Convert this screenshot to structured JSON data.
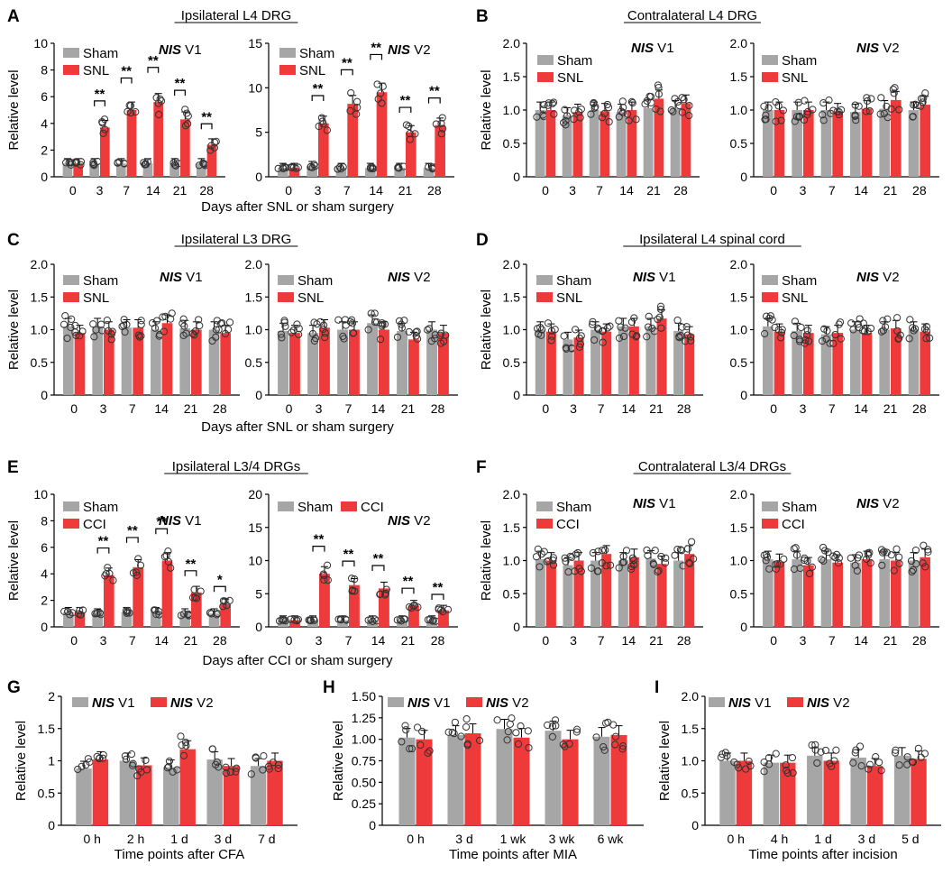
{
  "colors": {
    "sham": "#a6a6a6",
    "treat": "#ee3a3a",
    "v1": "#a6a6a6",
    "v2": "#ee3a3a"
  },
  "panels": [
    {
      "letter": "A",
      "title": "Ipsilateral L4 DRG",
      "xlabel": "Days after SNL or sham surgery"
    },
    {
      "letter": "B",
      "title": "Contralateral L4 DRG",
      "xlabel": ""
    },
    {
      "letter": "C",
      "title": "Ipsilateral L3 DRG",
      "xlabel": "Days after SNL or sham surgery"
    },
    {
      "letter": "D",
      "title": "Ipsilateral L4 spinal cord",
      "xlabel": ""
    },
    {
      "letter": "E",
      "title": "Ipsilateral L3/4 DRGs",
      "xlabel": "Days after CCI or sham surgery"
    },
    {
      "letter": "F",
      "title": "Contralateral L3/4 DRGs",
      "xlabel": ""
    },
    {
      "letter": "G",
      "title": "",
      "xlabel": "Time points after CFA"
    },
    {
      "letter": "H",
      "title": "",
      "xlabel": "Time points after MIA"
    },
    {
      "letter": "I",
      "title": "",
      "xlabel": "Time points after incision"
    }
  ],
  "chart_data": [
    {
      "id": "A1",
      "type": "bar",
      "ylabel": "Relative level",
      "ylim": [
        0,
        10
      ],
      "yticks": [
        "0",
        "2",
        "4",
        "6",
        "8",
        "10"
      ],
      "categories": [
        "0",
        "3",
        "7",
        "14",
        "21",
        "28"
      ],
      "annotation": "NIS V1",
      "series": [
        {
          "name": "Sham",
          "values": [
            1.0,
            1.0,
            1.0,
            1.0,
            1.0,
            1.0
          ]
        },
        {
          "name": "SNL",
          "values": [
            1.0,
            3.7,
            5.0,
            5.6,
            4.3,
            2.4
          ]
        }
      ],
      "significance": [
        "",
        "**",
        "**",
        "**",
        "**",
        "**"
      ]
    },
    {
      "id": "A2",
      "type": "bar",
      "ylabel": "",
      "ylim": [
        0,
        15
      ],
      "yticks": [
        "0",
        "5",
        "10",
        "15"
      ],
      "categories": [
        "0",
        "3",
        "7",
        "14",
        "21",
        "28"
      ],
      "annotation": "NIS V2",
      "series": [
        {
          "name": "Sham",
          "values": [
            1.0,
            1.2,
            1.0,
            1.0,
            1.0,
            1.0
          ]
        },
        {
          "name": "SNL",
          "values": [
            1.0,
            6.0,
            8.2,
            9.5,
            5.0,
            5.8
          ]
        }
      ],
      "significance": [
        "",
        "**",
        "**",
        "**",
        "**",
        "**"
      ]
    },
    {
      "id": "B1",
      "type": "bar",
      "ylabel": "Relative level",
      "ylim": [
        0,
        2.0
      ],
      "yticks": [
        "0",
        "0.5",
        "1.0",
        "1.5",
        "2.0"
      ],
      "categories": [
        "0",
        "3",
        "7",
        "14",
        "21",
        "28"
      ],
      "annotation": "NIS V1",
      "series": [
        {
          "name": "Sham",
          "values": [
            1.0,
            0.92,
            1.0,
            0.97,
            1.03,
            1.02
          ]
        },
        {
          "name": "SNL",
          "values": [
            1.0,
            0.97,
            0.98,
            1.0,
            1.17,
            1.1
          ]
        }
      ],
      "significance": [
        "",
        "",
        "",
        "",
        "",
        ""
      ]
    },
    {
      "id": "B2",
      "type": "bar",
      "ylabel": "",
      "ylim": [
        0,
        2.0
      ],
      "yticks": [
        "0",
        "0.5",
        "1.0",
        "1.5",
        "2.0"
      ],
      "categories": [
        "0",
        "3",
        "7",
        "14",
        "21",
        "28"
      ],
      "annotation": "NIS V2",
      "series": [
        {
          "name": "Sham",
          "values": [
            1.0,
            1.0,
            1.0,
            0.97,
            1.02,
            1.0
          ]
        },
        {
          "name": "SNL",
          "values": [
            1.0,
            1.0,
            0.98,
            1.02,
            1.15,
            1.08
          ]
        }
      ],
      "significance": [
        "",
        "",
        "",
        "",
        "",
        ""
      ]
    },
    {
      "id": "C1",
      "type": "bar",
      "ylabel": "Relative level",
      "ylim": [
        0,
        2.0
      ],
      "yticks": [
        "0",
        "0.5",
        "1.0",
        "1.5",
        "2.0"
      ],
      "categories": [
        "0",
        "3",
        "7",
        "14",
        "21",
        "28"
      ],
      "annotation": "NIS V1",
      "series": [
        {
          "name": "Sham",
          "values": [
            1.05,
            1.05,
            1.03,
            1.0,
            1.02,
            1.0
          ]
        },
        {
          "name": "SNL",
          "values": [
            0.95,
            1.0,
            1.03,
            1.1,
            1.0,
            0.95
          ]
        }
      ],
      "significance": [
        "",
        "",
        "",
        "",
        "",
        ""
      ]
    },
    {
      "id": "C2",
      "type": "bar",
      "ylabel": "",
      "ylim": [
        0,
        2.0
      ],
      "yticks": [
        "0",
        "0.5",
        "1.0",
        "1.5",
        "2.0"
      ],
      "categories": [
        "0",
        "3",
        "7",
        "14",
        "21",
        "28"
      ],
      "annotation": "NIS V2",
      "series": [
        {
          "name": "Sham",
          "values": [
            0.98,
            0.95,
            1.0,
            1.1,
            0.98,
            1.0
          ]
        },
        {
          "name": "SNL",
          "values": [
            0.95,
            1.03,
            1.0,
            1.0,
            0.85,
            0.95
          ]
        }
      ],
      "significance": [
        "",
        "",
        "",
        "",
        "",
        ""
      ]
    },
    {
      "id": "D1",
      "type": "bar",
      "ylabel": "Relative level",
      "ylim": [
        0,
        2.0
      ],
      "yticks": [
        "0",
        "0.5",
        "1.0",
        "1.5",
        "2.0"
      ],
      "categories": [
        "0",
        "3",
        "7",
        "14",
        "21",
        "28"
      ],
      "annotation": "NIS V1",
      "series": [
        {
          "name": "Sham",
          "values": [
            1.0,
            0.85,
            1.0,
            1.05,
            1.05,
            0.98
          ]
        },
        {
          "name": "SNL",
          "values": [
            0.97,
            0.88,
            0.97,
            1.05,
            1.17,
            0.93
          ]
        }
      ],
      "significance": [
        "",
        "",
        "",
        "",
        "",
        ""
      ]
    },
    {
      "id": "D2",
      "type": "bar",
      "ylabel": "",
      "ylim": [
        0,
        2.0
      ],
      "yticks": [
        "0",
        "0.5",
        "1.0",
        "1.5",
        "2.0"
      ],
      "categories": [
        "0",
        "3",
        "7",
        "14",
        "21",
        "28"
      ],
      "annotation": "NIS V2",
      "series": [
        {
          "name": "Sham",
          "values": [
            1.05,
            0.98,
            0.93,
            1.0,
            1.0,
            1.0
          ]
        },
        {
          "name": "SNL",
          "values": [
            0.97,
            0.95,
            0.95,
            0.95,
            1.02,
            0.97
          ]
        }
      ],
      "significance": [
        "",
        "",
        "",
        "",
        "",
        ""
      ]
    },
    {
      "id": "E1",
      "type": "bar",
      "ylabel": "Relative level",
      "ylim": [
        0,
        10
      ],
      "yticks": [
        "0",
        "2",
        "4",
        "6",
        "8",
        "10"
      ],
      "categories": [
        "0",
        "3",
        "7",
        "14",
        "21",
        "28"
      ],
      "annotation": "NIS V1",
      "series": [
        {
          "name": "Sham",
          "values": [
            1.1,
            1.0,
            1.1,
            1.1,
            1.0,
            1.0
          ]
        },
        {
          "name": "CCI",
          "values": [
            1.1,
            3.9,
            4.5,
            5.0,
            2.6,
            1.7
          ]
        }
      ],
      "significance": [
        "",
        "**",
        "**",
        "**",
        "**",
        "*"
      ]
    },
    {
      "id": "E2",
      "type": "bar",
      "ylabel": "",
      "ylim": [
        0,
        20
      ],
      "yticks": [
        "0",
        "5",
        "10",
        "15",
        "20"
      ],
      "categories": [
        "0",
        "3",
        "7",
        "14",
        "21",
        "28"
      ],
      "annotation": "NIS V2",
      "series": [
        {
          "name": "Sham",
          "values": [
            1.0,
            1.0,
            1.0,
            1.0,
            1.0,
            1.0
          ]
        },
        {
          "name": "CCI",
          "values": [
            1.0,
            8.0,
            6.3,
            5.8,
            3.2,
            2.5
          ]
        }
      ],
      "significance": [
        "",
        "**",
        "**",
        "**",
        "**",
        "**"
      ]
    },
    {
      "id": "F1",
      "type": "bar",
      "ylabel": "Relative level",
      "ylim": [
        0,
        2.0
      ],
      "yticks": [
        "0",
        "0.5",
        "1.0",
        "1.5",
        "2.0"
      ],
      "categories": [
        "0",
        "3",
        "7",
        "14",
        "21",
        "28"
      ],
      "annotation": "NIS V1",
      "series": [
        {
          "name": "Sham",
          "values": [
            1.02,
            0.93,
            1.0,
            1.0,
            1.03,
            1.0
          ]
        },
        {
          "name": "CCI",
          "values": [
            1.0,
            1.0,
            1.1,
            1.05,
            0.95,
            1.1
          ]
        }
      ],
      "significance": [
        "",
        "",
        "",
        "",
        "",
        ""
      ]
    },
    {
      "id": "F2",
      "type": "bar",
      "ylabel": "",
      "ylim": [
        0,
        2.0
      ],
      "yticks": [
        "0",
        "0.5",
        "1.0",
        "1.5",
        "2.0"
      ],
      "categories": [
        "0",
        "3",
        "7",
        "14",
        "21",
        "28"
      ],
      "annotation": "NIS V2",
      "series": [
        {
          "name": "Sham",
          "values": [
            1.02,
            1.02,
            1.02,
            0.97,
            1.02,
            1.0
          ]
        },
        {
          "name": "CCI",
          "values": [
            0.98,
            0.93,
            0.97,
            1.02,
            1.0,
            1.05
          ]
        }
      ],
      "significance": [
        "",
        "",
        "",
        "",
        "",
        ""
      ]
    },
    {
      "id": "G",
      "type": "bar",
      "ylabel": "Relative level",
      "ylim": [
        0,
        2
      ],
      "yticks": [
        "0",
        "0.5",
        "1",
        "1.5",
        "2"
      ],
      "categories": [
        "0 h",
        "2 h",
        "1 d",
        "3 d",
        "7 d"
      ],
      "annotation": "",
      "series": [
        {
          "name": "NIS V1",
          "values": [
            0.88,
            1.0,
            0.9,
            1.02,
            0.92
          ]
        },
        {
          "name": "NIS V2",
          "values": [
            1.02,
            0.93,
            1.18,
            0.92,
            1.0
          ]
        }
      ],
      "significance": [
        "",
        "",
        "",
        "",
        ""
      ]
    },
    {
      "id": "H",
      "type": "bar",
      "ylabel": "Relative level",
      "ylim": [
        0,
        1.5
      ],
      "yticks": [
        "0",
        "0.25",
        "0.50",
        "0.75",
        "1.00",
        "1.25",
        "1.50"
      ],
      "categories": [
        "0 h",
        "3 d",
        "1 wk",
        "3 wk",
        "6 wk"
      ],
      "annotation": "",
      "series": [
        {
          "name": "NIS V1",
          "values": [
            1.02,
            1.05,
            1.12,
            1.1,
            1.03
          ]
        },
        {
          "name": "NIS V2",
          "values": [
            1.0,
            1.07,
            1.02,
            1.0,
            1.05
          ]
        }
      ],
      "significance": [
        "",
        "",
        "",
        "",
        ""
      ]
    },
    {
      "id": "I",
      "type": "bar",
      "ylabel": "Relative level",
      "ylim": [
        0,
        2.0
      ],
      "yticks": [
        "0",
        "0.5",
        "1.0",
        "1.5",
        "2.0"
      ],
      "categories": [
        "0 h",
        "4 h",
        "1 d",
        "3 d",
        "5 d"
      ],
      "annotation": "",
      "series": [
        {
          "name": "NIS V1",
          "values": [
            1.0,
            0.97,
            1.08,
            1.05,
            1.08
          ]
        },
        {
          "name": "NIS V2",
          "values": [
            1.0,
            0.97,
            1.0,
            0.92,
            1.03
          ]
        }
      ],
      "significance": [
        "",
        "",
        "",
        "",
        ""
      ]
    }
  ]
}
